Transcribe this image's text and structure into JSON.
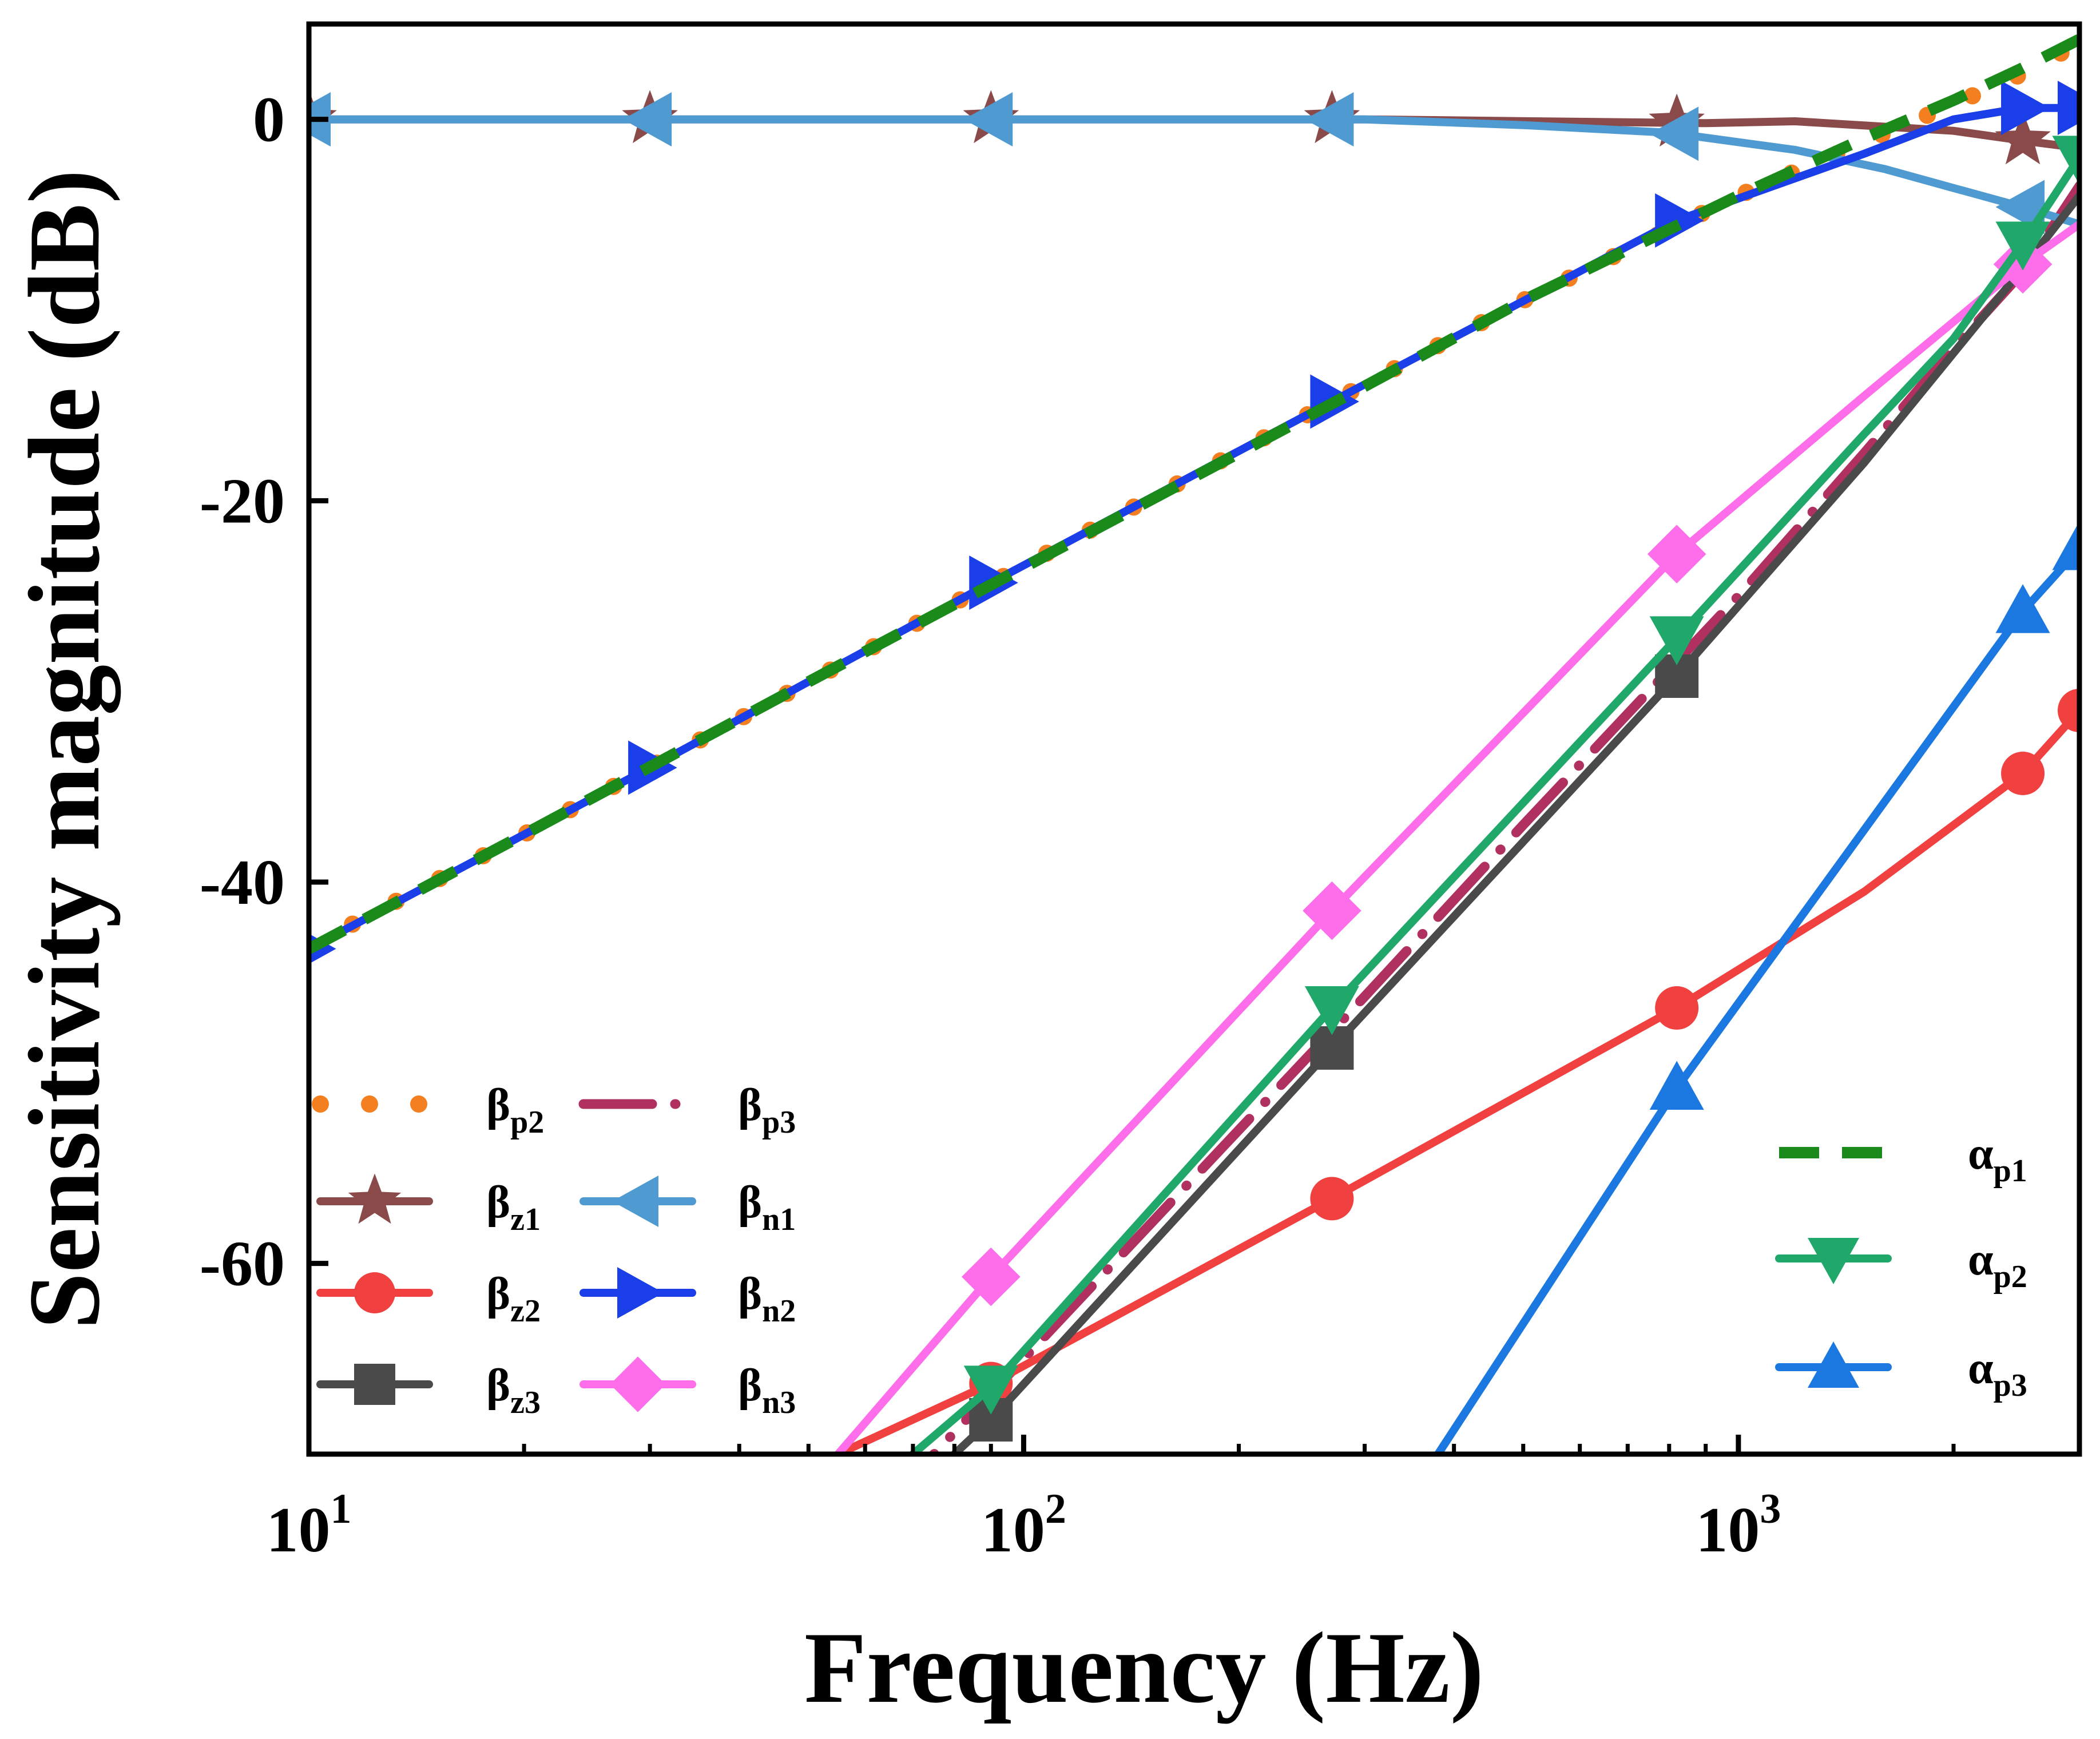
{
  "chart_data": {
    "type": "line",
    "xscale": "log",
    "xlim": [
      10,
      3000
    ],
    "ylim": [
      -70,
      5
    ],
    "xlabel": "Frequency (Hz)",
    "ylabel": "Sensitivity magnitude (dB)",
    "x_ticks": [
      {
        "value": 10,
        "base": "10",
        "exp": "1"
      },
      {
        "value": 100,
        "base": "10",
        "exp": "2"
      },
      {
        "value": 1000,
        "base": "10",
        "exp": "3"
      }
    ],
    "y_ticks": [
      {
        "value": 0,
        "label": "0"
      },
      {
        "value": -20,
        "label": "-20"
      },
      {
        "value": -40,
        "label": "-40"
      },
      {
        "value": -60,
        "label": "-60"
      }
    ],
    "series": [
      {
        "id": "beta-p2",
        "name": "βp2",
        "sym": "β",
        "sub": "p2",
        "color": "#f47f20",
        "style": "dot",
        "marker": "none",
        "x": [
          10,
          20,
          50,
          100,
          200,
          300,
          500,
          1000,
          1500,
          2000,
          2500,
          3000
        ],
        "y": [
          -43.4,
          -37.5,
          -29.5,
          -23.4,
          -17.4,
          -13.9,
          -9.5,
          -4.0,
          -1.2,
          0.8,
          2.4,
          4.0
        ]
      },
      {
        "id": "beta-p3",
        "name": "βp3",
        "sym": "β",
        "sub": "p3",
        "color": "#b03060",
        "style": "dashdot",
        "marker": "none",
        "x": [
          50,
          100,
          200,
          300,
          500,
          1000,
          1500,
          2000,
          2500,
          3000
        ],
        "y": [
          -77,
          -65,
          -53,
          -46,
          -37,
          -25,
          -17.5,
          -12,
          -8,
          -3.5
        ]
      },
      {
        "id": "beta-z1",
        "name": "βz1",
        "sym": "β",
        "sub": "z1",
        "color": "#8b4a4a",
        "style": "solid",
        "marker": "star",
        "x": [
          10,
          30,
          100,
          300,
          900,
          1200,
          2000,
          2600,
          3000
        ],
        "y": [
          0,
          0,
          0,
          0,
          -0.2,
          -0.1,
          -0.6,
          -1.2,
          -1.5
        ],
        "marker_x": [
          10,
          30,
          90,
          270,
          820,
          2500
        ]
      },
      {
        "id": "beta-n1",
        "name": "βn1",
        "sym": "β",
        "sub": "n1",
        "color": "#4f9bd1",
        "style": "solid",
        "marker": "triangle-left",
        "x": [
          10,
          100,
          300,
          500,
          800,
          1200,
          1600,
          2000,
          2500,
          3000
        ],
        "y": [
          0,
          0,
          0,
          -0.3,
          -0.7,
          -1.6,
          -2.6,
          -3.6,
          -4.6,
          -5.5
        ],
        "marker_x": [
          10,
          30,
          90,
          270,
          820,
          2500
        ]
      },
      {
        "id": "beta-z2",
        "name": "βz2",
        "sym": "β",
        "sub": "z2",
        "color": "#f04040",
        "style": "solid",
        "marker": "circle",
        "x": [
          55,
          90,
          270,
          820,
          1500,
          2500,
          3000
        ],
        "y": [
          -70,
          -66.3,
          -56.6,
          -46.6,
          -40.5,
          -34.3,
          -31.0
        ],
        "marker_x": [
          90,
          270,
          820,
          2500,
          3000
        ]
      },
      {
        "id": "beta-n2",
        "name": "βn2",
        "sym": "β",
        "sub": "n2",
        "color": "#1a3ee8",
        "style": "solid",
        "marker": "triangle-right",
        "x": [
          10,
          30,
          90,
          270,
          820,
          1500,
          2000,
          2500,
          3000
        ],
        "y": [
          -43.5,
          -34.0,
          -24.3,
          -14.8,
          -5.3,
          -1.8,
          0.0,
          0.6,
          0.6
        ],
        "marker_x": [
          10,
          30,
          90,
          270,
          820,
          2500,
          3000
        ]
      },
      {
        "id": "beta-z3",
        "name": "βz3",
        "sym": "β",
        "sub": "z3",
        "color": "#4a4a4a",
        "style": "solid",
        "marker": "square",
        "x": [
          80,
          90,
          270,
          820,
          1500,
          2500,
          3000
        ],
        "y": [
          -70,
          -68.2,
          -48.7,
          -29.2,
          -18.0,
          -7.8,
          -4.0
        ],
        "marker_x": [
          90,
          270,
          820
        ]
      },
      {
        "id": "beta-n3",
        "name": "βn3",
        "sym": "β",
        "sub": "n3",
        "color": "#ff6eea",
        "style": "solid",
        "marker": "diamond",
        "x": [
          55,
          90,
          270,
          820,
          1500,
          2500,
          3000
        ],
        "y": [
          -70,
          -60.7,
          -41.5,
          -22.8,
          -14.5,
          -7.6,
          -5.5
        ],
        "marker_x": [
          90,
          270,
          820,
          2500
        ]
      },
      {
        "id": "alpha-p1",
        "name": "αp1",
        "sym": "α",
        "sub": "p1",
        "color": "#1a8a1a",
        "style": "dash",
        "marker": "none",
        "x": [
          10,
          20,
          50,
          100,
          200,
          300,
          500,
          1000,
          1500,
          2000,
          2500,
          3000
        ],
        "y": [
          -43.5,
          -37.5,
          -29.5,
          -23.5,
          -17.5,
          -14.0,
          -9.5,
          -4.0,
          -1.0,
          1.0,
          2.7,
          4.2
        ]
      },
      {
        "id": "alpha-p2",
        "name": "αp2",
        "sym": "α",
        "sub": "p2",
        "color": "#20a86a",
        "style": "solid",
        "marker": "triangle-down",
        "x": [
          70,
          90,
          270,
          820,
          1500,
          2000,
          2500,
          3000
        ],
        "y": [
          -70,
          -66.5,
          -46.6,
          -27.2,
          -16.5,
          -11.5,
          -6.5,
          -2.0
        ],
        "marker_x": [
          90,
          270,
          820,
          2500,
          3000
        ]
      },
      {
        "id": "alpha-p3",
        "name": "αp3",
        "sym": "α",
        "sub": "p3",
        "color": "#1a78e0",
        "style": "solid",
        "marker": "triangle-up",
        "x": [
          380,
          820,
          2500,
          3000
        ],
        "y": [
          -70,
          -50.8,
          -25.8,
          -22.5
        ],
        "marker_x": [
          820,
          2500,
          3000
        ]
      }
    ],
    "legends": [
      {
        "position": "bottom-left",
        "columns": 2,
        "entries": [
          "beta-p2",
          "beta-p3",
          "beta-z1",
          "beta-n1",
          "beta-z2",
          "beta-n2",
          "beta-z3",
          "beta-n3"
        ]
      },
      {
        "position": "bottom-right",
        "columns": 1,
        "entries": [
          "alpha-p1",
          "alpha-p2",
          "alpha-p3"
        ]
      }
    ]
  }
}
